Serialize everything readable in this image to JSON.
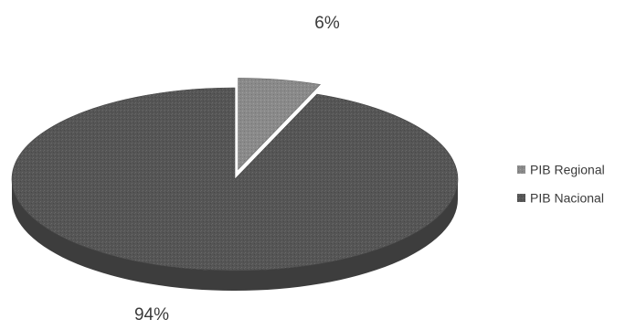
{
  "chart_data": {
    "type": "pie",
    "style": "3d-exploded",
    "slices": [
      {
        "label": "PIB Regional",
        "value": 6,
        "value_label": "6%",
        "color": "#8a8a8a"
      },
      {
        "label": "PIB Nacional",
        "value": 94,
        "value_label": "94%",
        "color": "#555555"
      }
    ],
    "legend": {
      "position": "right",
      "entries": [
        "PIB Regional",
        "PIB Nacional"
      ]
    }
  }
}
